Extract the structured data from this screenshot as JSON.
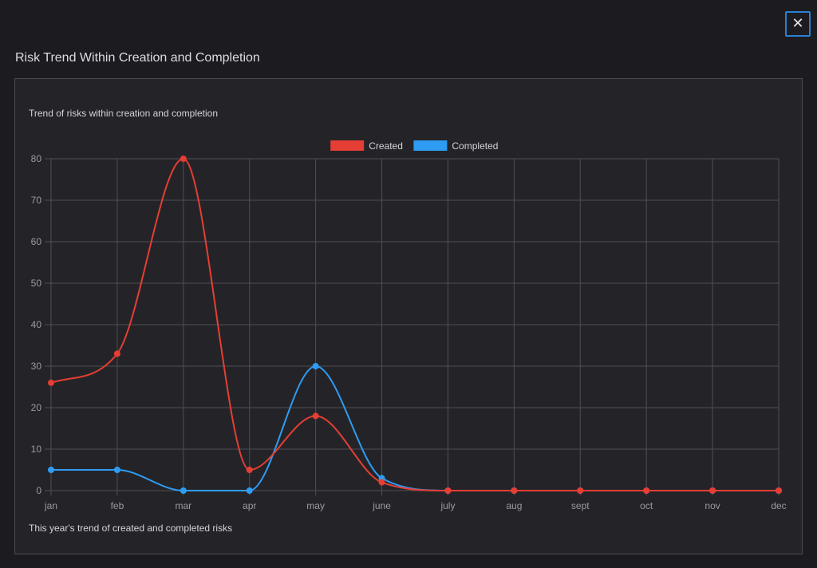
{
  "modal": {
    "title": "Risk Trend Within Creation and Completion",
    "close_label": "✕"
  },
  "chart_data": {
    "type": "line",
    "subtitle": "Trend of risks within creation and completion",
    "caption": "This year's trend of created and completed risks",
    "categories": [
      "jan",
      "feb",
      "mar",
      "apr",
      "may",
      "june",
      "july",
      "aug",
      "sept",
      "oct",
      "nov",
      "dec"
    ],
    "series": [
      {
        "name": "Created",
        "color": "#e53e34",
        "values": [
          26,
          33,
          80,
          5,
          18,
          2,
          0,
          0,
          0,
          0,
          0,
          0
        ]
      },
      {
        "name": "Completed",
        "color": "#2f9cf3",
        "values": [
          5,
          5,
          0,
          0,
          30,
          3,
          0,
          0,
          0,
          0,
          0,
          0
        ]
      }
    ],
    "ylim": [
      0,
      80
    ],
    "yticks": [
      0,
      10,
      20,
      30,
      40,
      50,
      60,
      70,
      80
    ],
    "grid": true,
    "legend": "top-center",
    "smooth": true
  }
}
